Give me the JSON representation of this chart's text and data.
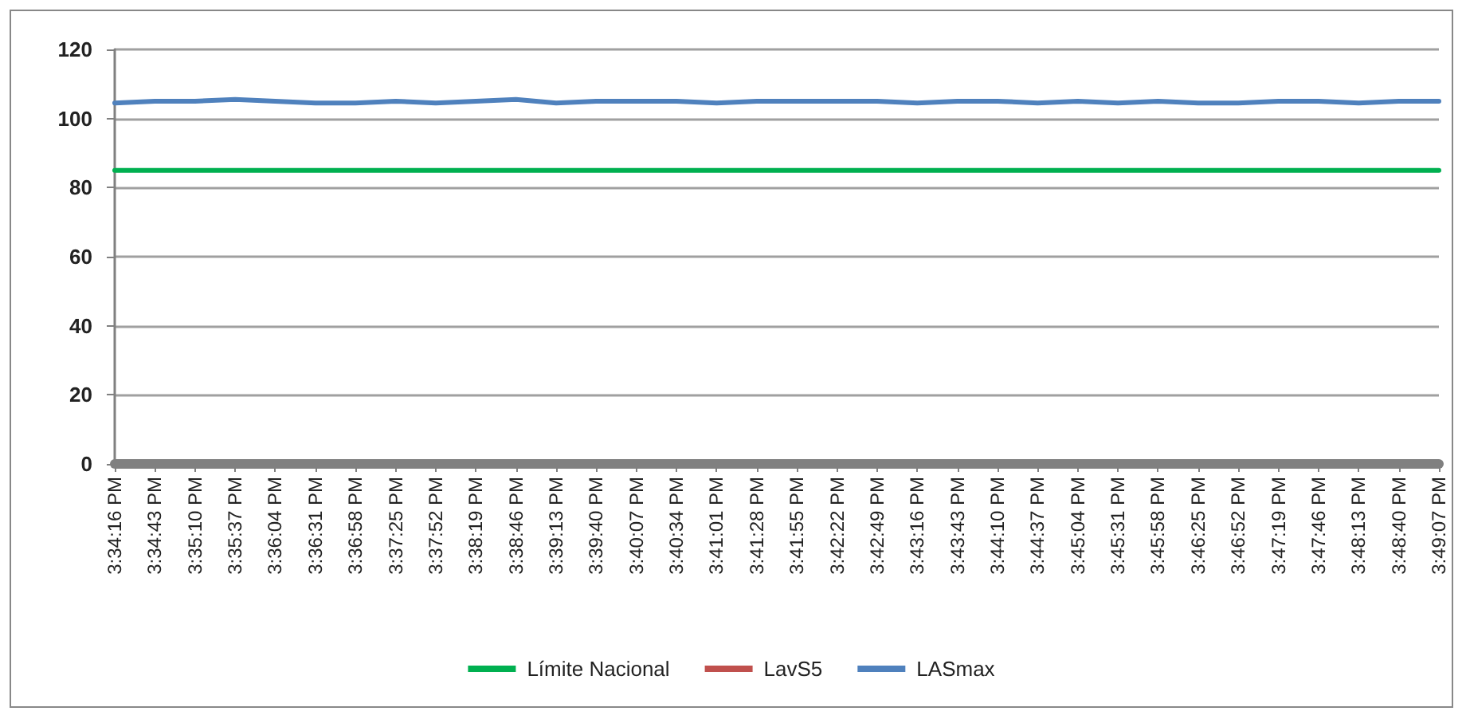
{
  "chart_data": {
    "type": "line",
    "categories": [
      "3:34:16 PM",
      "3:34:43 PM",
      "3:35:10 PM",
      "3:35:37 PM",
      "3:36:04 PM",
      "3:36:31 PM",
      "3:36:58 PM",
      "3:37:25 PM",
      "3:37:52 PM",
      "3:38:19 PM",
      "3:38:46 PM",
      "3:39:13 PM",
      "3:39:40 PM",
      "3:40:07 PM",
      "3:40:34 PM",
      "3:41:01 PM",
      "3:41:28 PM",
      "3:41:55 PM",
      "3:42:22 PM",
      "3:42:49 PM",
      "3:43:16 PM",
      "3:43:43 PM",
      "3:44:10 PM",
      "3:44:37 PM",
      "3:45:04 PM",
      "3:45:31 PM",
      "3:45:58 PM",
      "3:46:25 PM",
      "3:46:52 PM",
      "3:47:19 PM",
      "3:47:46 PM",
      "3:48:13 PM",
      "3:48:40 PM",
      "3:49:07 PM"
    ],
    "series": [
      {
        "name": "Límite Nacional",
        "color": "#00b050",
        "values": [
          85,
          85,
          85,
          85,
          85,
          85,
          85,
          85,
          85,
          85,
          85,
          85,
          85,
          85,
          85,
          85,
          85,
          85,
          85,
          85,
          85,
          85,
          85,
          85,
          85,
          85,
          85,
          85,
          85,
          85,
          85,
          85,
          85,
          85
        ]
      },
      {
        "name": "LavS5",
        "color": "#c0504d",
        "values": [
          null,
          null,
          null,
          null,
          null,
          null,
          null,
          null,
          null,
          null,
          null,
          null,
          null,
          null,
          null,
          null,
          null,
          null,
          null,
          null,
          null,
          null,
          null,
          null,
          null,
          null,
          null,
          null,
          null,
          null,
          null,
          null,
          null,
          null
        ]
      },
      {
        "name": "LASmax",
        "color": "#4f81bd",
        "values": [
          104.5,
          105,
          105,
          105.5,
          105,
          104.5,
          104.5,
          105,
          104.5,
          105,
          105.5,
          104.5,
          105,
          105,
          105,
          104.5,
          105,
          105,
          105,
          105,
          104.5,
          105,
          105,
          104.5,
          105,
          104.5,
          105,
          104.5,
          104.5,
          105,
          105,
          104.5,
          105,
          105
        ]
      }
    ],
    "ylim": [
      0,
      120
    ],
    "yticks": [
      0,
      20,
      40,
      60,
      80,
      100,
      120
    ],
    "grid": "y",
    "legend": "bottom",
    "marker": "none",
    "line_style": "solid"
  }
}
